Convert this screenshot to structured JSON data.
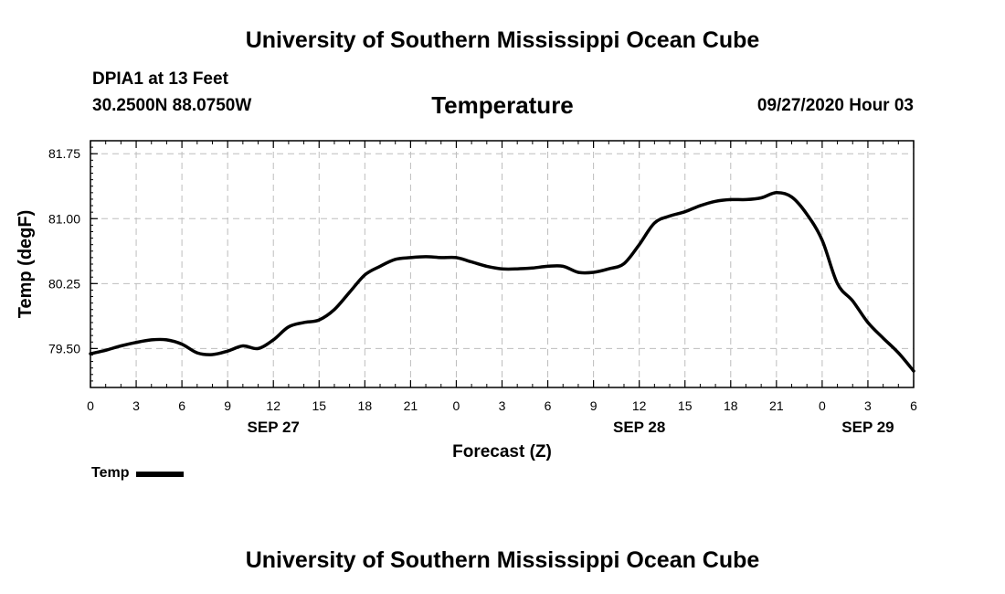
{
  "header": {
    "top_title": "University of Southern Mississippi Ocean Cube",
    "station": "DPIA1 at 13 Feet",
    "coords": "30.2500N 88.0750W",
    "chart_title": "Temperature",
    "datetime": "09/27/2020 Hour 03"
  },
  "footer": {
    "bottom_title": "University of Southern Mississippi Ocean Cube"
  },
  "legend": {
    "label": "Temp"
  },
  "colors": {
    "line": "#000000",
    "grid": "#bdbdbd"
  },
  "chart_data": {
    "type": "line",
    "title": "Temperature",
    "xlabel": "Forecast (Z)",
    "ylabel": "Temp (degF)",
    "grid": true,
    "xlim": [
      0,
      54
    ],
    "ylim": [
      79.05,
      81.9
    ],
    "yticks": [
      79.5,
      80.25,
      81.0,
      81.75
    ],
    "ytick_labels": [
      "79.50",
      "80.25",
      "81.00",
      "81.75"
    ],
    "xticks": [
      0,
      3,
      6,
      9,
      12,
      15,
      18,
      21,
      24,
      27,
      30,
      33,
      36,
      39,
      42,
      45,
      48,
      51,
      54
    ],
    "xtick_labels": [
      "0",
      "3",
      "6",
      "9",
      "12",
      "15",
      "18",
      "21",
      "0",
      "3",
      "6",
      "9",
      "12",
      "15",
      "18",
      "21",
      "0",
      "3",
      "6"
    ],
    "date_labels": [
      {
        "x": 12,
        "label": "SEP 27"
      },
      {
        "x": 36,
        "label": "SEP 28"
      },
      {
        "x": 51,
        "label": "SEP 29"
      }
    ],
    "legend_position": "bottom-left",
    "series": [
      {
        "name": "Temp",
        "x": [
          0,
          1,
          2,
          3,
          4,
          5,
          6,
          7,
          8,
          9,
          10,
          11,
          12,
          13,
          14,
          15,
          16,
          17,
          18,
          19,
          20,
          21,
          22,
          23,
          24,
          25,
          26,
          27,
          28,
          29,
          30,
          31,
          32,
          33,
          34,
          35,
          36,
          37,
          38,
          39,
          40,
          41,
          42,
          43,
          44,
          45,
          46,
          47,
          48,
          49,
          50,
          51,
          52,
          53,
          54
        ],
        "values": [
          79.44,
          79.48,
          79.53,
          79.57,
          79.6,
          79.6,
          79.55,
          79.45,
          79.43,
          79.47,
          79.53,
          79.5,
          79.6,
          79.75,
          79.8,
          79.83,
          79.95,
          80.15,
          80.35,
          80.45,
          80.53,
          80.55,
          80.56,
          80.55,
          80.55,
          80.5,
          80.45,
          80.42,
          80.42,
          80.43,
          80.45,
          80.45,
          80.38,
          80.38,
          80.42,
          80.48,
          80.7,
          80.95,
          81.03,
          81.08,
          81.15,
          81.2,
          81.22,
          81.22,
          81.24,
          81.3,
          81.25,
          81.05,
          80.75,
          80.25,
          80.05,
          79.8,
          79.62,
          79.45,
          79.24
        ]
      }
    ]
  }
}
